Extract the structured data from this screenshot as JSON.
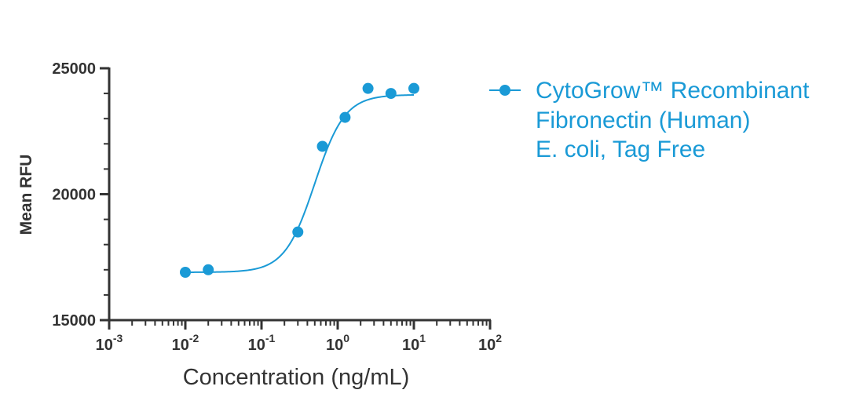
{
  "chart_data": {
    "type": "scatter",
    "xscale": "log",
    "xlim": [
      0.001,
      100
    ],
    "ylim": [
      15000,
      25000
    ],
    "xlabel": "Concentration (ng/mL)",
    "ylabel": "Mean RFU",
    "x_ticks": [
      {
        "base": "10",
        "exp": "-3",
        "value": 0.001
      },
      {
        "base": "10",
        "exp": "-2",
        "value": 0.01
      },
      {
        "base": "10",
        "exp": "-1",
        "value": 0.1
      },
      {
        "base": "10",
        "exp": "0",
        "value": 1
      },
      {
        "base": "10",
        "exp": "1",
        "value": 10
      },
      {
        "base": "10",
        "exp": "2",
        "value": 100
      }
    ],
    "y_ticks": [
      {
        "label": "15000",
        "value": 15000
      },
      {
        "label": "20000",
        "value": 20000
      },
      {
        "label": "25000",
        "value": 25000
      }
    ],
    "legend_position": "right",
    "series": [
      {
        "name": "CytoGrow™ Recombinant Fibronectin (Human) E. coli, Tag Free",
        "legend_lines": [
          "CytoGrow™ Recombinant",
          "Fibronectin (Human)",
          "E. coli, Tag Free"
        ],
        "color": "#1a9ad6",
        "x": [
          0.01,
          0.02,
          0.3,
          0.63,
          1.25,
          2.5,
          5,
          10
        ],
        "y": [
          16900,
          17000,
          18500,
          21900,
          23050,
          24200,
          24000,
          24200
        ],
        "fit": {
          "model": "4PL",
          "bottom": 16900,
          "top": 23950,
          "ec50": 0.5,
          "hill": 2.2,
          "x_range": [
            0.01,
            10
          ]
        }
      }
    ]
  }
}
